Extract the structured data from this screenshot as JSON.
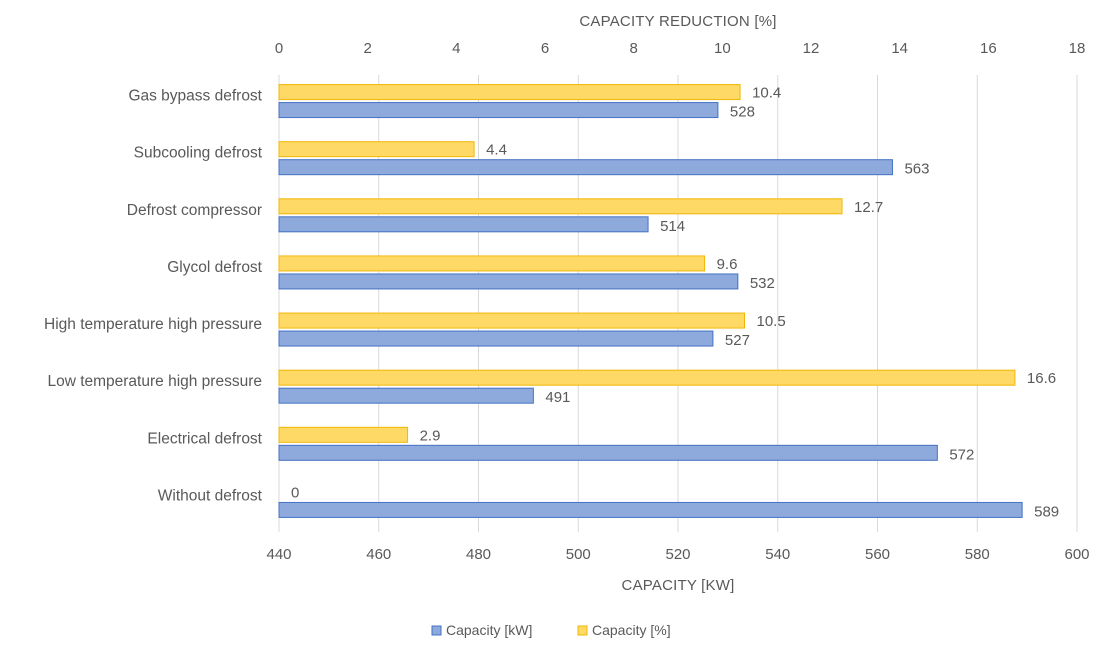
{
  "chart_data": {
    "type": "bar",
    "orientation": "horizontal",
    "categories": [
      "Gas bypass defrost",
      "Subcooling defrost",
      "Defrost compressor",
      "Glycol defrost",
      "High temperature high pressure",
      "Low temperature high pressure",
      "Electrical defrost",
      "Without defrost"
    ],
    "series": [
      {
        "name": "Capacity [%]",
        "axis": "top",
        "color": "#FFD966",
        "stroke": "#F2B705",
        "values": [
          10.4,
          4.4,
          12.7,
          9.6,
          10.5,
          16.6,
          2.9,
          0
        ],
        "labels": [
          "10.4",
          "4.4",
          "12.7",
          "9.6",
          "10.5",
          "16.6",
          "2.9",
          "0"
        ]
      },
      {
        "name": "Capacity [kW]",
        "axis": "bottom",
        "color": "#8EA9DB",
        "stroke": "#4472C4",
        "values": [
          528,
          563,
          514,
          532,
          527,
          491,
          572,
          589
        ],
        "labels": [
          "528",
          "563",
          "514",
          "532",
          "527",
          "491",
          "572",
          "589"
        ]
      }
    ],
    "top_axis": {
      "label": "CAPACITY REDUCTION [%]",
      "range": [
        0,
        18
      ],
      "ticks": [
        "0",
        "2",
        "4",
        "6",
        "8",
        "10",
        "12",
        "14",
        "16",
        "18"
      ]
    },
    "bottom_axis": {
      "label": "CAPACITY [KW]",
      "range": [
        440,
        600
      ],
      "ticks": [
        "440",
        "460",
        "480",
        "500",
        "520",
        "540",
        "560",
        "580",
        "600"
      ]
    },
    "grid": true,
    "legend_position": "bottom",
    "legend": [
      "Capacity [kW]",
      "Capacity [%]"
    ]
  }
}
